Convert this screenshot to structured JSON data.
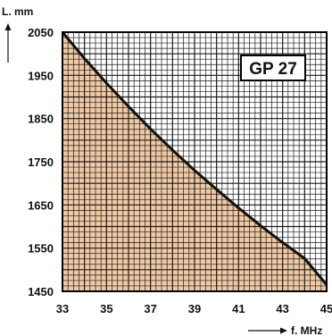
{
  "chart_data": {
    "type": "area",
    "title": "",
    "badge": "GP 27",
    "xlabel": "f. MHz",
    "ylabel": "L. mm",
    "xlim": [
      33,
      45
    ],
    "ylim": [
      1450,
      2050
    ],
    "x_ticks": [
      "33",
      "35",
      "37",
      "39",
      "41",
      "43",
      "45"
    ],
    "y_ticks": [
      "2050",
      "1950",
      "1850",
      "1750",
      "1650",
      "1550",
      "1450"
    ],
    "series": [
      {
        "x": [
          33,
          34,
          35,
          36,
          37,
          38,
          39,
          40,
          41,
          42,
          43,
          44,
          45
        ],
        "values": [
          2050,
          1989,
          1932,
          1878,
          1826,
          1777,
          1730,
          1686,
          1643,
          1602,
          1563,
          1526,
          1465
        ]
      }
    ],
    "grid": true,
    "colors": {
      "fill": "#f0c9a4",
      "curve": "#111111",
      "grid": "#1a1a1a",
      "frame": "#000000"
    }
  }
}
